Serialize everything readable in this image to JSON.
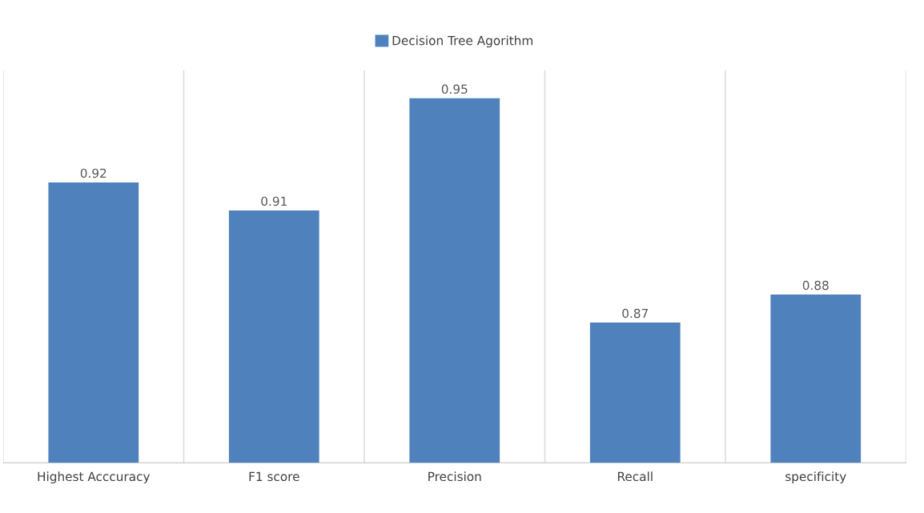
{
  "chart_data": {
    "type": "bar",
    "categories": [
      "Highest Acccuracy",
      "F1 score",
      "Precision",
      "Recall",
      "specificity"
    ],
    "series": [
      {
        "name": "Decision Tree Agorithm",
        "color": "#4f81bd",
        "values": [
          0.92,
          0.91,
          0.95,
          0.87,
          0.88
        ]
      }
    ],
    "ylim": [
      0.82,
      0.96
    ],
    "tick_labels": "x",
    "data_labels": true,
    "grid": "x",
    "legend": "top"
  }
}
